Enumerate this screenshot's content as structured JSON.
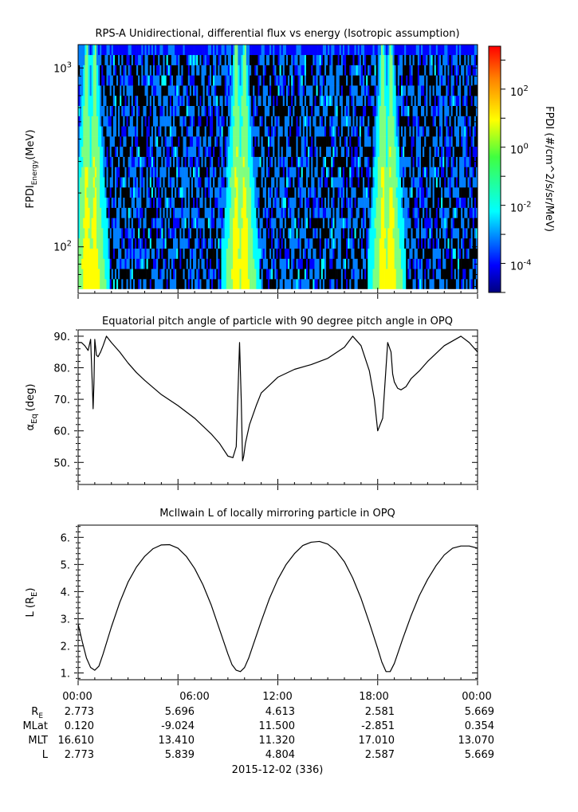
{
  "panels": {
    "spectrogram": {
      "title": "RPS-A Unidirectional, differential flux vs energy (Isotropic assumption)",
      "ylabel_main": "FPDI",
      "ylabel_sub": "Energy",
      "ylabel_unit": "(MeV)",
      "colorbar_label": "FPDI (#/cm^2/s/sr/MeV)"
    },
    "pitch": {
      "title": "Equatorial pitch angle of particle with 90 degree pitch angle in OPQ",
      "ylabel_main": "α",
      "ylabel_sub": "Eq",
      "ylabel_unit": "(deg)"
    },
    "lshell": {
      "title": "McIlwain L of locally mirroring particle in OPQ",
      "ylabel_main": "L (R",
      "ylabel_sub": "E",
      "ylabel_unit": ")"
    }
  },
  "footer": {
    "row_labels": [
      {
        "main": "R",
        "sub": "E"
      },
      {
        "main": "MLat",
        "sub": ""
      },
      {
        "main": "MLT",
        "sub": ""
      },
      {
        "main": "L",
        "sub": ""
      }
    ],
    "time_ticks": [
      "00:00",
      "06:00",
      "12:00",
      "18:00",
      "00:00"
    ],
    "rows": [
      [
        "2.773",
        "5.696",
        "4.613",
        "2.581",
        "5.669"
      ],
      [
        "0.120",
        "-9.024",
        "11.500",
        "-2.851",
        "0.354"
      ],
      [
        "16.610",
        "13.410",
        "11.320",
        "17.010",
        "13.070"
      ],
      [
        "2.773",
        "5.839",
        "4.804",
        "2.587",
        "5.669"
      ]
    ],
    "date": "2015-12-02 (336)"
  },
  "chart_data": [
    {
      "type": "heatmap",
      "title": "RPS-A Unidirectional, differential flux vs energy (Isotropic assumption)",
      "xlabel": "",
      "ylabel": "FPDI Energy (MeV)",
      "xlim_hours": [
        0,
        24
      ],
      "ylim": [
        55,
        1350
      ],
      "yscale": "log",
      "y_ticks": [
        {
          "value": 100,
          "base": "10",
          "exp": "2"
        },
        {
          "value": 1000,
          "base": "10",
          "exp": "3"
        }
      ],
      "colorbar": {
        "label": "FPDI (#/cm^2/s/sr/MeV)",
        "scale": "log",
        "range": [
          1e-05,
          3000
        ],
        "ticks": [
          {
            "value": 0.0001,
            "base": "10",
            "exp": "-4"
          },
          {
            "value": 0.01,
            "base": "10",
            "exp": "-2"
          },
          {
            "value": 1,
            "base": "10",
            "exp": "0"
          },
          {
            "value": 100,
            "base": "10",
            "exp": "2"
          }
        ],
        "colors": [
          "#00007f",
          "#0000ff",
          "#007fff",
          "#00ffff",
          "#7fff7f",
          "#ffff00",
          "#ff7f00",
          "#ff0000"
        ]
      },
      "belt_crossings_hours": [
        0.5,
        1.0,
        9.5,
        10.0,
        18.3,
        18.8
      ],
      "grid": false
    },
    {
      "type": "line",
      "title": "Equatorial pitch angle of particle with 90 degree pitch angle in OPQ",
      "xlabel": "",
      "ylabel": "α Eq (deg)",
      "xlim_hours": [
        0,
        24
      ],
      "ylim": [
        43,
        92
      ],
      "y_ticks": [
        50,
        60,
        70,
        80,
        90
      ],
      "series": [
        {
          "x": [
            0.0,
            0.2,
            0.4,
            0.6,
            0.75,
            0.85,
            0.9,
            0.95,
            1.0,
            1.1,
            1.2,
            1.35,
            1.5,
            1.7,
            2.0,
            2.5,
            3.0,
            3.5,
            4.0,
            5.0,
            6.0,
            7.0,
            8.0,
            8.5,
            9.0,
            9.3,
            9.5,
            9.7,
            9.8,
            9.88,
            9.95,
            10.05,
            10.3,
            10.7,
            11.0,
            12.0,
            13.0,
            14.0,
            15.0,
            16.0,
            16.5,
            17.0,
            17.5,
            17.8,
            18.0,
            18.3,
            18.6,
            18.8,
            18.9,
            19.0,
            19.2,
            19.4,
            19.7,
            20.0,
            20.5,
            21.0,
            22.0,
            23.0,
            23.5,
            24.0
          ],
          "y": [
            88.0,
            88.0,
            87.0,
            85.5,
            89.0,
            75.0,
            67.0,
            75.0,
            89.0,
            84.0,
            83.5,
            85.0,
            87.0,
            90.0,
            88.0,
            85.0,
            81.5,
            78.5,
            76.0,
            71.5,
            68.0,
            64.0,
            59.0,
            56.0,
            52.0,
            51.5,
            55.0,
            88.0,
            70.0,
            50.5,
            52.0,
            56.0,
            62.0,
            68.0,
            72.0,
            77.0,
            79.5,
            81.0,
            83.0,
            86.5,
            90.0,
            87.0,
            79.0,
            70.0,
            60.0,
            64.0,
            88.0,
            85.0,
            78.0,
            75.5,
            73.5,
            73.0,
            74.0,
            76.5,
            79.0,
            82.0,
            87.0,
            90.0,
            88.0,
            85.0
          ]
        }
      ]
    },
    {
      "type": "line",
      "title": "McIlwain L of locally mirroring particle in OPQ",
      "xlabel": "",
      "ylabel": "L (R E)",
      "xlim_hours": [
        0,
        24
      ],
      "ylim": [
        0.75,
        6.45
      ],
      "y_ticks": [
        1,
        2,
        3,
        4,
        5,
        6
      ],
      "series": [
        {
          "x": [
            0.0,
            0.25,
            0.5,
            0.75,
            1.0,
            1.25,
            1.5,
            2.0,
            2.5,
            3.0,
            3.5,
            4.0,
            4.5,
            5.0,
            5.5,
            6.0,
            6.5,
            7.0,
            7.5,
            8.0,
            8.5,
            9.0,
            9.25,
            9.5,
            9.75,
            10.0,
            10.25,
            10.5,
            11.0,
            11.5,
            12.0,
            12.5,
            13.0,
            13.5,
            14.0,
            14.5,
            15.0,
            15.5,
            16.0,
            16.5,
            17.0,
            17.5,
            18.0,
            18.25,
            18.5,
            18.75,
            19.0,
            19.25,
            19.5,
            20.0,
            20.5,
            21.0,
            21.5,
            22.0,
            22.5,
            23.0,
            23.5,
            24.0
          ],
          "y": [
            2.8,
            2.15,
            1.55,
            1.2,
            1.1,
            1.25,
            1.7,
            2.7,
            3.6,
            4.35,
            4.9,
            5.3,
            5.58,
            5.72,
            5.73,
            5.6,
            5.3,
            4.85,
            4.25,
            3.5,
            2.6,
            1.7,
            1.3,
            1.1,
            1.05,
            1.2,
            1.55,
            2.0,
            2.9,
            3.75,
            4.45,
            5.0,
            5.4,
            5.7,
            5.82,
            5.85,
            5.75,
            5.5,
            5.1,
            4.5,
            3.75,
            2.85,
            1.9,
            1.4,
            1.05,
            1.05,
            1.35,
            1.8,
            2.25,
            3.1,
            3.85,
            4.45,
            4.95,
            5.35,
            5.6,
            5.68,
            5.68,
            5.6
          ]
        }
      ]
    }
  ]
}
